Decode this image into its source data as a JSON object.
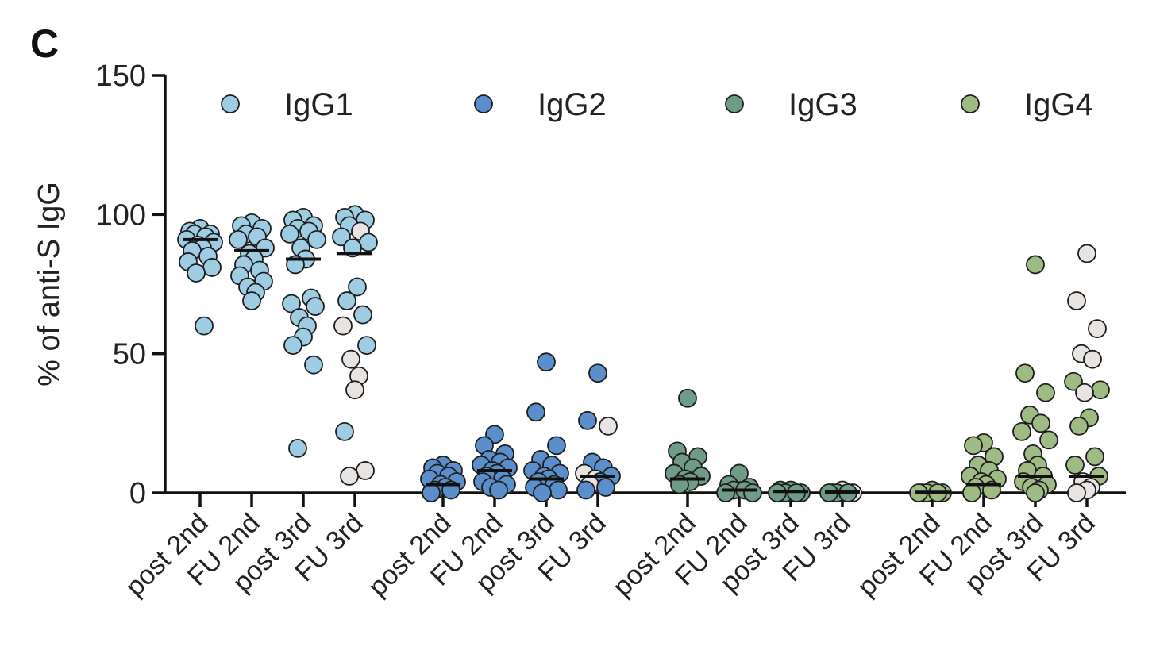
{
  "panel_label": "C",
  "chart_data": {
    "type": "scatter",
    "ylabel": "% of anti-S IgG",
    "xlabel": "",
    "ylim": [
      0,
      150
    ],
    "yticks": [
      0,
      50,
      100,
      150
    ],
    "legend": {
      "placement": "top",
      "entries": [
        {
          "name": "IgG1",
          "color": "#9ecde3"
        },
        {
          "name": "IgG2",
          "color": "#5b8fcc"
        },
        {
          "name": "IgG3",
          "color": "#6e9c86"
        },
        {
          "name": "IgG4",
          "color": "#9fbb84"
        }
      ]
    },
    "highlight_color": "#e7e4e1",
    "categories": [
      "post 2nd",
      "FU 2nd",
      "post 3rd",
      "FU 3rd"
    ],
    "groups": [
      {
        "series": "IgG1",
        "color": "#9ecde3",
        "columns": [
          {
            "label": "post 2nd",
            "median": 91,
            "points": [
              95,
              94,
              93,
              93,
              92,
              91,
              90,
              89,
              88,
              87,
              85,
              83,
              81,
              79,
              60
            ],
            "highlight": []
          },
          {
            "label": "FU 2nd",
            "median": 87,
            "points": [
              97,
              96,
              95,
              93,
              92,
              91,
              88,
              86,
              84,
              82,
              80,
              78,
              76,
              74,
              72,
              69
            ],
            "highlight": []
          },
          {
            "label": "post 3rd",
            "median": 84,
            "points": [
              99,
              98,
              96,
              95,
              94,
              93,
              91,
              88,
              84,
              82,
              70,
              68,
              67,
              63,
              60,
              56,
              53,
              46,
              16
            ],
            "highlight": []
          },
          {
            "label": "FU 3rd",
            "median": 86,
            "points": [
              100,
              99,
              98,
              96,
              94,
              92,
              90,
              88,
              74,
              69,
              64,
              60,
              53,
              48,
              42,
              37,
              22,
              8,
              6
            ],
            "highlight": [
              94,
              60,
              48,
              42,
              37,
              8,
              6
            ]
          }
        ]
      },
      {
        "series": "IgG2",
        "color": "#5b8fcc",
        "columns": [
          {
            "label": "post 2nd",
            "median": 3,
            "points": [
              10,
              9,
              8,
              7,
              6,
              5,
              4,
              3,
              2,
              1,
              1,
              0
            ],
            "highlight": []
          },
          {
            "label": "FU 2nd",
            "median": 8,
            "points": [
              21,
              17,
              14,
              12,
              11,
              10,
              9,
              8,
              7,
              6,
              5,
              4,
              3,
              2,
              1
            ],
            "highlight": []
          },
          {
            "label": "post 3rd",
            "median": 5,
            "points": [
              47,
              29,
              17,
              12,
              10,
              8,
              7,
              6,
              5,
              4,
              3,
              2,
              1,
              0
            ],
            "highlight": []
          },
          {
            "label": "FU 3rd",
            "median": 6,
            "points": [
              43,
              26,
              24,
              11,
              9,
              7,
              6,
              5,
              4,
              3,
              2,
              1
            ],
            "highlight": [
              24,
              7,
              5,
              3
            ]
          }
        ]
      },
      {
        "series": "IgG3",
        "color": "#6e9c86",
        "columns": [
          {
            "label": "post 2nd",
            "median": 5,
            "points": [
              34,
              15,
              13,
              11,
              9,
              7,
              6,
              5,
              4,
              3
            ],
            "highlight": []
          },
          {
            "label": "FU 2nd",
            "median": 1,
            "points": [
              7,
              3,
              2,
              1,
              1,
              0,
              0
            ],
            "highlight": []
          },
          {
            "label": "post 3rd",
            "median": 0.5,
            "points": [
              1,
              1,
              0,
              0,
              0,
              0
            ],
            "highlight": []
          },
          {
            "label": "FU 3rd",
            "median": 0.3,
            "points": [
              1,
              0,
              0,
              0,
              0,
              0
            ],
            "highlight": [
              1,
              0,
              0
            ]
          }
        ]
      },
      {
        "series": "IgG4",
        "color": "#9fbb84",
        "columns": [
          {
            "label": "post 2nd",
            "median": 0.2,
            "points": [
              1,
              0,
              0,
              0,
              0,
              0
            ],
            "highlight": []
          },
          {
            "label": "FU 2nd",
            "median": 3,
            "points": [
              18,
              17,
              13,
              10,
              8,
              6,
              5,
              4,
              3,
              2,
              1,
              0
            ],
            "highlight": []
          },
          {
            "label": "post 3rd",
            "median": 6,
            "points": [
              82,
              43,
              36,
              28,
              25,
              22,
              19,
              14,
              10,
              8,
              6,
              4,
              3,
              2,
              1,
              0
            ],
            "highlight": []
          },
          {
            "label": "FU 3rd",
            "median": 6,
            "points": [
              86,
              69,
              59,
              50,
              48,
              40,
              37,
              36,
              27,
              24,
              13,
              10,
              6,
              4,
              2,
              1,
              0
            ],
            "highlight": [
              86,
              69,
              59,
              50,
              48,
              36,
              4,
              2,
              1,
              0
            ]
          }
        ]
      }
    ]
  }
}
